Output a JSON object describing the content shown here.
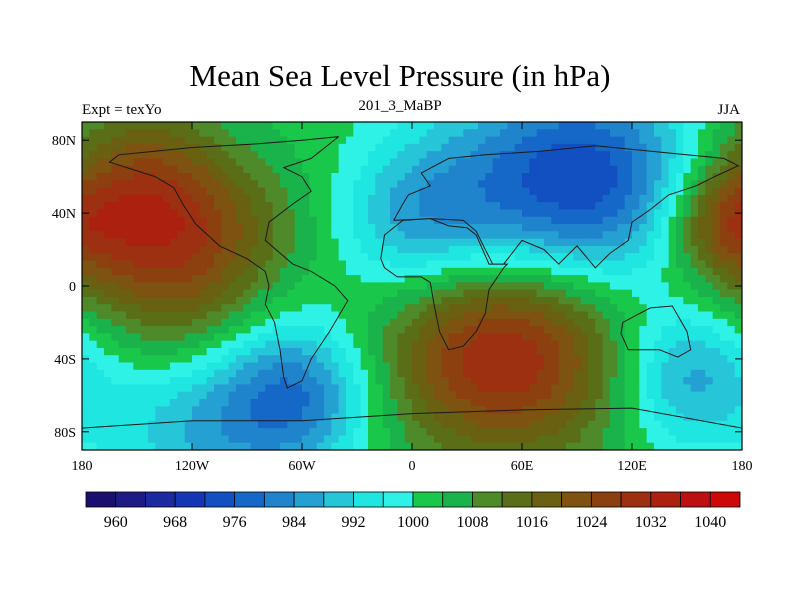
{
  "header": {
    "title": "Mean Sea Level Pressure (in hPa)",
    "left_label": "Expt = texYo",
    "center_label": "201_3_MaBP",
    "right_label": "JJA"
  },
  "chart_data": {
    "type": "heatmap",
    "variable": "Mean Sea Level Pressure",
    "units": "hPa",
    "x_range": [
      -180,
      180
    ],
    "y_range": [
      -90,
      90
    ],
    "x_ticks": [
      {
        "value": -180,
        "label": "180"
      },
      {
        "value": -120,
        "label": "120W"
      },
      {
        "value": -60,
        "label": "60W"
      },
      {
        "value": 0,
        "label": "0"
      },
      {
        "value": 60,
        "label": "60E"
      },
      {
        "value": 120,
        "label": "120E"
      },
      {
        "value": 180,
        "label": "180"
      }
    ],
    "y_ticks": [
      {
        "value": 80,
        "label": "80N"
      },
      {
        "value": 40,
        "label": "40N"
      },
      {
        "value": 0,
        "label": "0"
      },
      {
        "value": -40,
        "label": "40S"
      },
      {
        "value": -80,
        "label": "80S"
      }
    ],
    "colorbar": {
      "levels": [
        956,
        960,
        964,
        968,
        972,
        976,
        980,
        984,
        988,
        992,
        996,
        1000,
        1004,
        1008,
        1012,
        1016,
        1020,
        1024,
        1028,
        1032,
        1036,
        1040,
        1044
      ],
      "colors": [
        "#1a0e6e",
        "#1e1a86",
        "#1b2a9e",
        "#1436b4",
        "#1250c2",
        "#1668c8",
        "#1f84cc",
        "#25a0d2",
        "#26c6d8",
        "#1fe6e0",
        "#2ff2e6",
        "#19c84a",
        "#1ab24a",
        "#4e8a2a",
        "#5a6e18",
        "#6a6012",
        "#7e5210",
        "#8c4010",
        "#9c3010",
        "#ac2010",
        "#bc1010",
        "#cc0808"
      ],
      "tick_labels": [
        "960",
        "968",
        "976",
        "984",
        "992",
        "1000",
        "1008",
        "1016",
        "1024",
        "1032",
        "1040"
      ]
    },
    "pressure_centers": [
      {
        "lon": -150,
        "lat": 40,
        "value": 1020,
        "radius": 40
      },
      {
        "lon": -120,
        "lat": 38,
        "value": 1020,
        "radius": 40
      },
      {
        "lon": 170,
        "lat": 35,
        "value": 1018,
        "radius": 22
      },
      {
        "lon": 30,
        "lat": -35,
        "value": 1020,
        "radius": 38
      },
      {
        "lon": 70,
        "lat": -35,
        "value": 1022,
        "radius": 40
      },
      {
        "lon": -120,
        "lat": -30,
        "value": 1013,
        "radius": 30
      },
      {
        "lon": -110,
        "lat": -65,
        "value": 984,
        "radius": 40
      },
      {
        "lon": -60,
        "lat": -60,
        "value": 986,
        "radius": 28
      },
      {
        "lon": 150,
        "lat": -50,
        "value": 986,
        "radius": 28
      },
      {
        "lon": 60,
        "lat": 50,
        "value": 984,
        "radius": 45
      },
      {
        "lon": 110,
        "lat": 60,
        "value": 984,
        "radius": 40
      },
      {
        "lon": 0,
        "lat": 35,
        "value": 990,
        "radius": 30
      },
      {
        "lon": -100,
        "lat": 75,
        "value": 996,
        "radius": 30
      }
    ]
  }
}
